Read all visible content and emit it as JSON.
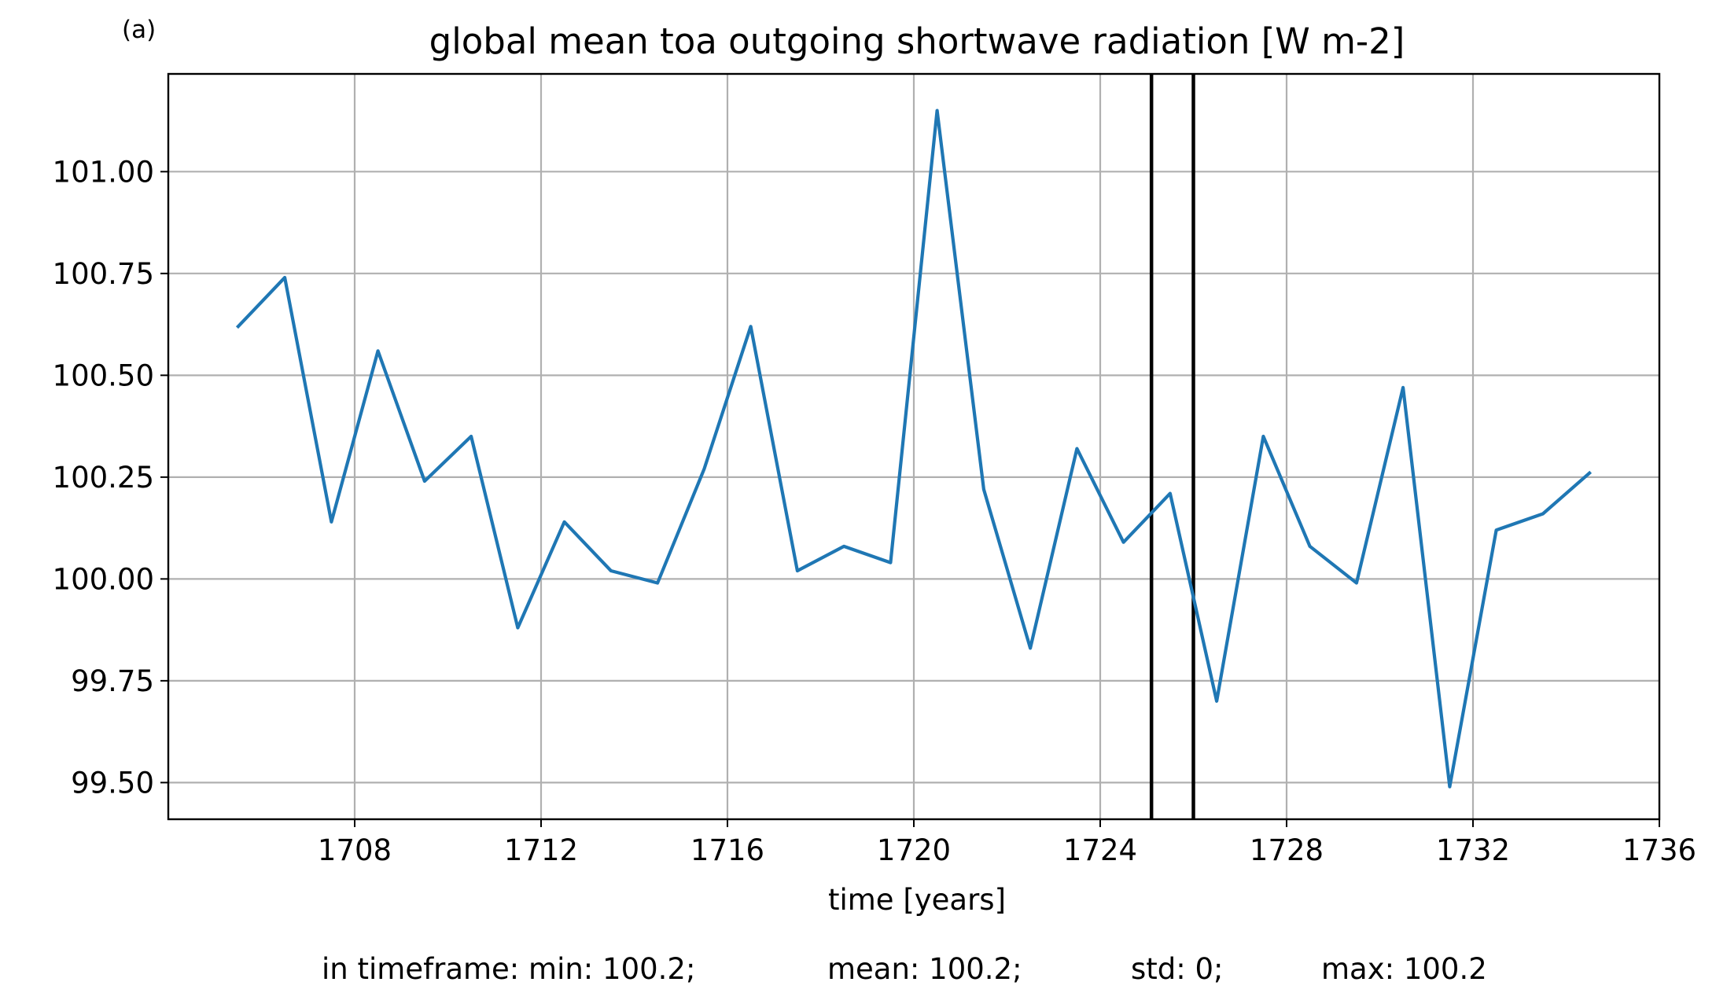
{
  "panel_label": "(a)",
  "colors": {
    "series": "#1f77b4",
    "grid": "#b0b0b0",
    "axis": "#000000",
    "markers": "#000000",
    "background": "#ffffff"
  },
  "stats": {
    "min": "in timeframe: min: 100.2;",
    "mean": "mean: 100.2;",
    "std": "std: 0;",
    "max": "max: 100.2"
  },
  "chart_data": {
    "type": "line",
    "title": "global mean toa outgoing shortwave radiation [W m-2]",
    "xlabel": "time [years]",
    "ylabel": "",
    "xlim": [
      1704.0,
      1736.0
    ],
    "ylim": [
      99.41,
      101.24
    ],
    "grid": true,
    "legend": "none",
    "x_ticks": [
      1708,
      1712,
      1716,
      1720,
      1724,
      1728,
      1732,
      1736
    ],
    "x_tick_labels": [
      "1708",
      "1712",
      "1716",
      "1720",
      "1724",
      "1728",
      "1732",
      "1736"
    ],
    "y_ticks": [
      99.5,
      99.75,
      100.0,
      100.25,
      100.5,
      100.75,
      101.0
    ],
    "y_tick_labels": [
      "99.50",
      "99.75",
      "100.00",
      "100.25",
      "100.50",
      "100.75",
      "101.00"
    ],
    "vertical_lines": [
      1725.1,
      1726.0
    ],
    "series": [
      {
        "x": [
          1705.5,
          1706.5,
          1707.5,
          1708.5,
          1709.5,
          1710.5,
          1711.5,
          1712.5,
          1713.5,
          1714.5,
          1715.5,
          1716.5,
          1717.5,
          1718.5,
          1719.5,
          1720.5,
          1721.5,
          1722.5,
          1723.5,
          1724.5,
          1725.5,
          1726.5,
          1727.5,
          1728.5,
          1729.5,
          1730.5,
          1731.5,
          1732.5,
          1733.5,
          1734.5
        ],
        "values": [
          100.62,
          100.74,
          100.14,
          100.56,
          100.24,
          100.35,
          99.88,
          100.14,
          100.02,
          99.99,
          100.27,
          100.62,
          100.02,
          100.08,
          100.04,
          101.15,
          100.22,
          99.83,
          100.32,
          100.09,
          100.21,
          99.7,
          100.35,
          100.08,
          99.99,
          100.47,
          99.49,
          100.12,
          100.16,
          100.26
        ]
      }
    ]
  }
}
